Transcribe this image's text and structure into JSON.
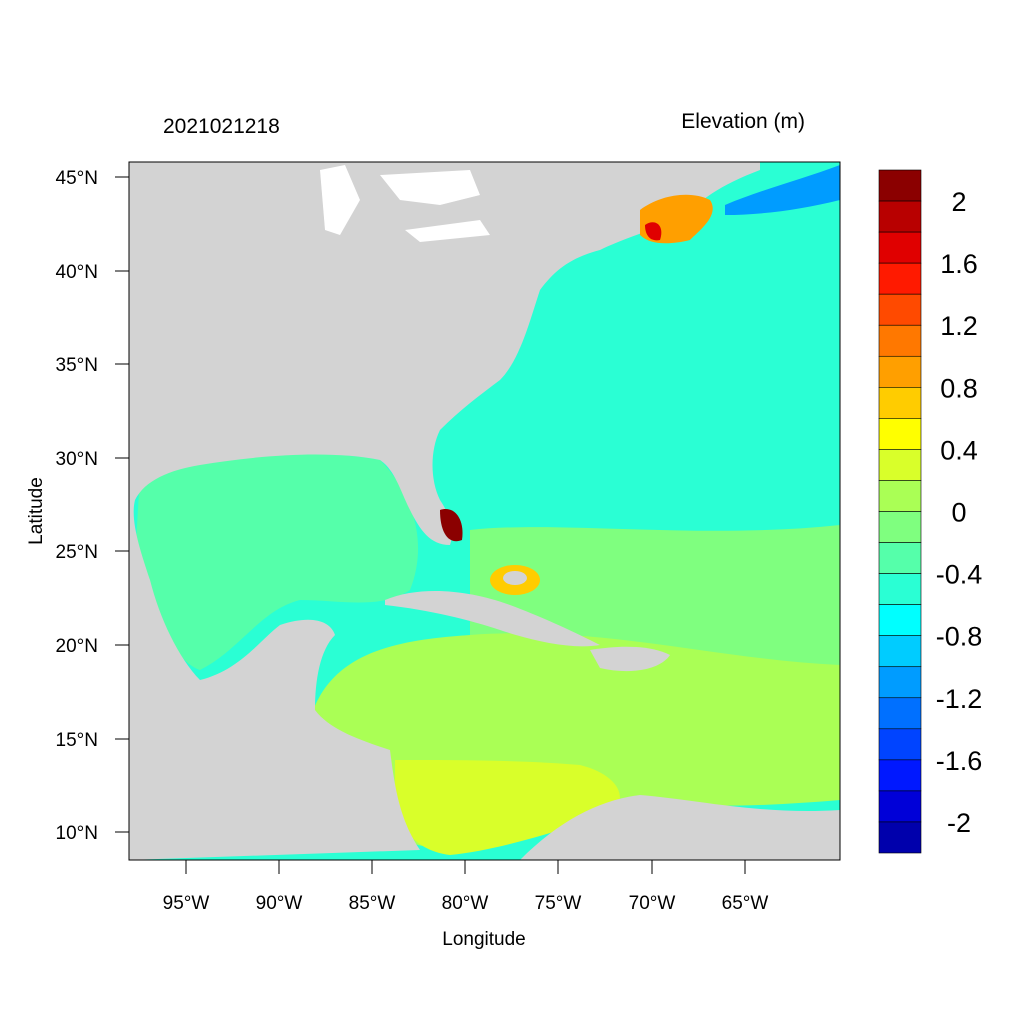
{
  "header": {
    "left_title": "2021021218",
    "right_title": "Elevation (m)"
  },
  "axes": {
    "xlabel": "Longitude",
    "ylabel": "Latitude",
    "x_ticks": [
      "95°W",
      "90°W",
      "85°W",
      "80°W",
      "75°W",
      "70°W",
      "65°W"
    ],
    "y_ticks": [
      "45°N",
      "40°N",
      "35°N",
      "30°N",
      "25°N",
      "20°N",
      "15°N",
      "10°N"
    ]
  },
  "colorbar": {
    "labels": [
      "2",
      "1.6",
      "1.2",
      "0.8",
      "0.4",
      "0",
      "-0.4",
      "-0.8",
      "-1.2",
      "-1.6",
      "-2"
    ],
    "colors_top_to_bottom": [
      "#8b0000",
      "#b80000",
      "#e00000",
      "#ff1a00",
      "#ff4a00",
      "#ff7800",
      "#ff9f00",
      "#ffcc00",
      "#ffff00",
      "#d9ff2a",
      "#aaff55",
      "#7fff7f",
      "#55ffaa",
      "#2affd4",
      "#00ffff",
      "#00ccff",
      "#009cff",
      "#0070ff",
      "#0044ff",
      "#0018ff",
      "#0000d8",
      "#0000ac"
    ]
  },
  "map_colors": {
    "land": "#d3d3d3",
    "lakes": "#ffffff",
    "ocean_default": "#2affd4"
  }
}
